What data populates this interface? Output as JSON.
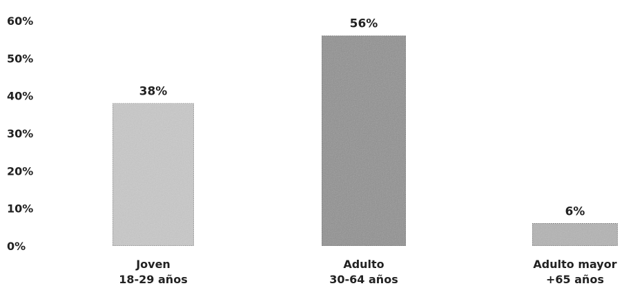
{
  "chart_data": {
    "type": "bar",
    "categories": [
      [
        "Joven",
        "18-29 años"
      ],
      [
        "Adulto",
        "30-64 años"
      ],
      [
        "Adulto mayor",
        "+65 años"
      ]
    ],
    "values": [
      38,
      56,
      6
    ],
    "data_labels": [
      "38%",
      "56%",
      "6%"
    ],
    "ylim": [
      0,
      60
    ],
    "yticks": [
      0,
      10,
      20,
      30,
      40,
      50,
      60
    ],
    "ytick_labels": [
      "0%",
      "10%",
      "20%",
      "30%",
      "40%",
      "50%",
      "60%"
    ],
    "grid": false,
    "legend": "none",
    "bar_colors": [
      "#c9c9c9",
      "#8f8f8f",
      "#b3b3b3"
    ]
  }
}
